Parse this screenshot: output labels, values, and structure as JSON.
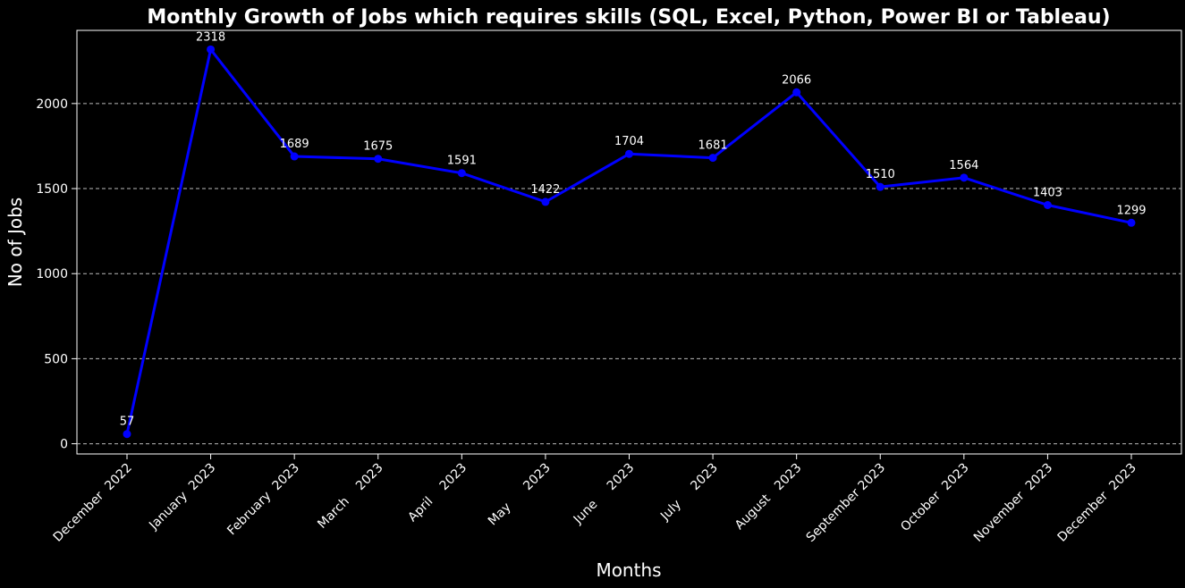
{
  "chart_data": {
    "type": "line",
    "title": "Monthly Growth of Jobs which requires skills (SQL, Excel, Python, Power BI or Tableau)",
    "xlabel": "Months",
    "ylabel": "No of Jobs",
    "categories": [
      "December  2022",
      "January  2023",
      "February  2023",
      "March    2023",
      "April    2023",
      "May      2023",
      "June     2023",
      "July     2023",
      "August   2023",
      "September 2023",
      "October  2023",
      "November  2023",
      "December  2023"
    ],
    "series": [
      {
        "values": [
          57,
          2318,
          1689,
          1675,
          1591,
          1422,
          1704,
          1681,
          2066,
          1510,
          1564,
          1403,
          1299
        ]
      }
    ],
    "data_labels": [
      "57",
      "2318",
      "1689",
      "1675",
      "1591",
      "1422",
      "1704",
      "1681",
      "2066",
      "1510",
      "1564",
      "1403",
      "1299"
    ],
    "yticks": [
      "0",
      "500",
      "1000",
      "1500",
      "2000"
    ],
    "ylim": [
      -60,
      2430
    ],
    "grid": "y-dashed",
    "colors": {
      "background": "#000000",
      "line": "#0000ff",
      "text": "#ffffff",
      "grid": "#bbbbbb"
    }
  }
}
